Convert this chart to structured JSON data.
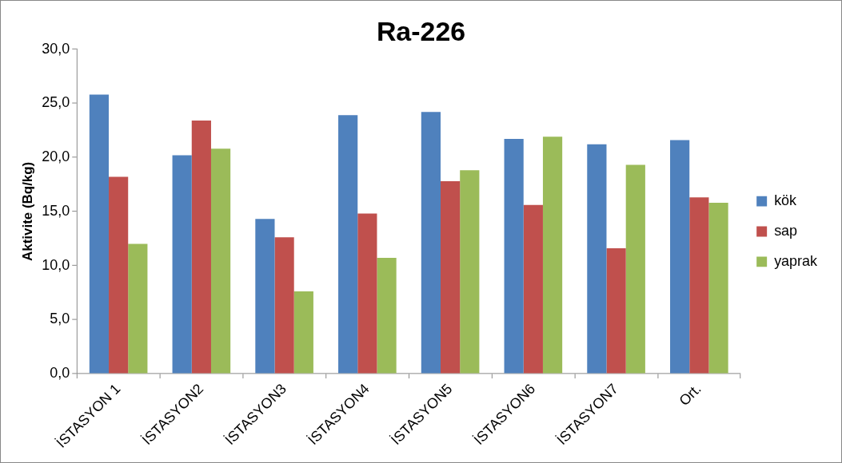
{
  "chart_data": {
    "type": "bar",
    "title": "Ra-226",
    "ylabel": "Aktivite (Bq/kg)",
    "categories": [
      "İSTASYON 1",
      "İSTASYON2",
      "İSTASYON3",
      "İSTASYON4",
      "İSTASYON5",
      "İSTASYON6",
      "İSTASYON7",
      "Ort."
    ],
    "series": [
      {
        "name": "kök",
        "color": "#4f81bd",
        "values": [
          25.8,
          20.2,
          14.3,
          23.9,
          24.2,
          21.7,
          21.2,
          21.6
        ]
      },
      {
        "name": "sap",
        "color": "#c0504d",
        "values": [
          18.2,
          23.4,
          12.6,
          14.8,
          17.8,
          15.6,
          11.6,
          16.3
        ]
      },
      {
        "name": "yaprak",
        "color": "#9bbb59",
        "values": [
          12.0,
          20.8,
          7.6,
          10.7,
          18.8,
          21.9,
          19.3,
          15.8
        ]
      }
    ],
    "ylim": [
      0,
      30
    ],
    "yticks": [
      {
        "value": 0,
        "label": "0,0"
      },
      {
        "value": 5,
        "label": "5,0"
      },
      {
        "value": 10,
        "label": "10,0"
      },
      {
        "value": 15,
        "label": "15,0"
      },
      {
        "value": 20,
        "label": "20,0"
      },
      {
        "value": 25,
        "label": "25,0"
      },
      {
        "value": 30,
        "label": "30,0"
      }
    ],
    "grid": false,
    "legend": "right"
  }
}
